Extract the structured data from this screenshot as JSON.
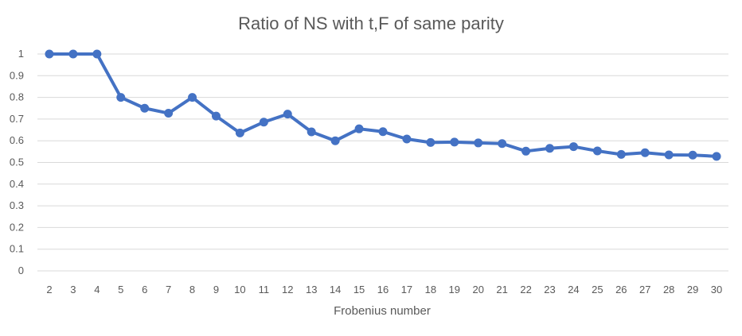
{
  "chart_data": {
    "type": "line",
    "title": "Ratio of NS with t,F of same parity",
    "xlabel": "Frobenius number",
    "ylabel": "",
    "ylim": [
      0,
      1
    ],
    "yticks": [
      "0",
      "0.1",
      "0.2",
      "0.3",
      "0.4",
      "0.5",
      "0.6",
      "0.7",
      "0.8",
      "0.9",
      "1"
    ],
    "categories": [
      "2",
      "3",
      "4",
      "5",
      "6",
      "7",
      "8",
      "9",
      "10",
      "11",
      "12",
      "13",
      "14",
      "15",
      "16",
      "17",
      "18",
      "19",
      "20",
      "21",
      "22",
      "23",
      "24",
      "25",
      "26",
      "27",
      "28",
      "29",
      "30"
    ],
    "grid": true,
    "legend": "none",
    "color": "#4472c4",
    "series": [
      {
        "values": [
          1,
          1,
          1,
          0.8,
          0.75,
          0.727,
          0.8,
          0.714,
          0.636,
          0.686,
          0.723,
          0.641,
          0.6,
          0.655,
          0.642,
          0.608,
          0.592,
          0.594,
          0.59,
          0.587,
          0.552,
          0.565,
          0.573,
          0.553,
          0.537,
          0.545,
          0.535,
          0.534,
          0.528
        ]
      }
    ]
  }
}
